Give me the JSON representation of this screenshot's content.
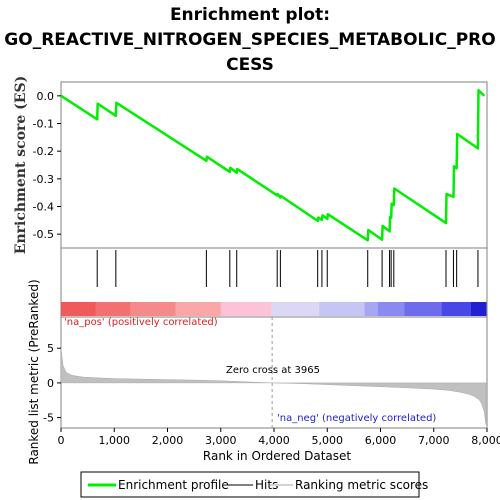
{
  "title_lines": [
    "Enrichment plot:",
    "GO_REACTIVE_NITROGEN_SPECIES_METABOLIC_PRO",
    "CESS"
  ],
  "chart_data": {
    "type": "line",
    "title": "Enrichment plot: GO_REACTIVE_NITROGEN_SPECIES_METABOLIC_PROCESS",
    "x_range": [
      0,
      8000
    ],
    "x_ticks": [
      0,
      1000,
      2000,
      3000,
      4000,
      5000,
      6000,
      7000,
      8000
    ],
    "x_tick_labels": [
      "0",
      "1,000",
      "2,000",
      "3,000",
      "4,000",
      "5,000",
      "6,000",
      "7,000",
      "8,000"
    ],
    "xlabel": "Rank in Ordered Dataset",
    "es_panel": {
      "ylabel": "Enrichment score (ES)",
      "y_range": [
        -0.55,
        0.05
      ],
      "y_ticks": [
        0.0,
        -0.1,
        -0.2,
        -0.3,
        -0.4,
        -0.5
      ],
      "y_tick_labels": [
        "0.0",
        "-0.1",
        "-0.2",
        "-0.3",
        "-0.4",
        "-0.5"
      ],
      "color": "#00ee00",
      "x": [
        0,
        680,
        690,
        1030,
        1040,
        2730,
        2740,
        3170,
        3180,
        3300,
        3310,
        4060,
        4070,
        4120,
        4130,
        4820,
        4830,
        4900,
        4910,
        5000,
        5010,
        5760,
        5770,
        6030,
        6040,
        6170,
        6180,
        6200,
        6210,
        6250,
        6260,
        7230,
        7240,
        7370,
        7380,
        7430,
        7440,
        7830,
        7840,
        7950
      ],
      "y": [
        0.0,
        -0.085,
        -0.028,
        -0.072,
        -0.025,
        -0.235,
        -0.22,
        -0.275,
        -0.26,
        -0.278,
        -0.265,
        -0.36,
        -0.355,
        -0.368,
        -0.362,
        -0.452,
        -0.44,
        -0.448,
        -0.432,
        -0.445,
        -0.428,
        -0.522,
        -0.485,
        -0.52,
        -0.47,
        -0.49,
        -0.438,
        -0.44,
        -0.39,
        -0.395,
        -0.335,
        -0.46,
        -0.355,
        -0.365,
        -0.255,
        -0.262,
        -0.138,
        -0.19,
        0.02,
        0.0
      ]
    },
    "hits_panel": {
      "series_name": "Hits",
      "positions": [
        680,
        1030,
        2730,
        3170,
        3300,
        4060,
        4120,
        4820,
        4900,
        5000,
        5760,
        6030,
        6170,
        6200,
        6250,
        7230,
        7370,
        7430,
        7830
      ]
    },
    "ranking_panel": {
      "ylabel": "Ranked list metric (PreRanked)",
      "y_range": [
        -6.5,
        9.5
      ],
      "y_ticks": [
        5,
        0,
        -5
      ],
      "y_tick_labels": [
        "5",
        "0",
        "-5"
      ],
      "fill_color": "#c0c0c0",
      "x": [
        0,
        40,
        100,
        200,
        400,
        700,
        1000,
        1500,
        2000,
        2500,
        3000,
        3500,
        3965,
        4500,
        5000,
        5500,
        6000,
        6500,
        7000,
        7300,
        7500,
        7650,
        7750,
        7850,
        7900,
        7950,
        7980
      ],
      "y": [
        5.0,
        2.5,
        1.5,
        1.1,
        0.85,
        0.72,
        0.62,
        0.55,
        0.47,
        0.4,
        0.3,
        0.15,
        0.0,
        -0.1,
        -0.25,
        -0.4,
        -0.55,
        -0.7,
        -0.9,
        -1.1,
        -1.35,
        -1.6,
        -1.9,
        -2.4,
        -3.0,
        -4.2,
        -6.0
      ],
      "zero_cross_label": "Zero cross at 3965",
      "zero_cross_rank": 3965,
      "pos_label": "'na_pos' (positively correlated)",
      "neg_label": "'na_neg' (negatively correlated)"
    },
    "color_band": {
      "colors": [
        "#f05a5a",
        "#f47070",
        "#f68a8a",
        "#f9a7a7",
        "#fbc2d8",
        "#dcd8f4",
        "#c6c6f4",
        "#a6a6f2",
        "#8a8af0",
        "#6c6cec",
        "#4848e6",
        "#2020d0"
      ],
      "breaks": [
        0,
        650,
        1300,
        2150,
        3000,
        3950,
        4850,
        5700,
        5950,
        6450,
        7150,
        7700,
        7980
      ]
    },
    "legend": [
      {
        "label": "Enrichment profile",
        "color": "#00ee00"
      },
      {
        "label": "Hits",
        "color": "#808080"
      },
      {
        "label": "Ranking metric scores",
        "color": "#d3d3d3"
      }
    ]
  }
}
